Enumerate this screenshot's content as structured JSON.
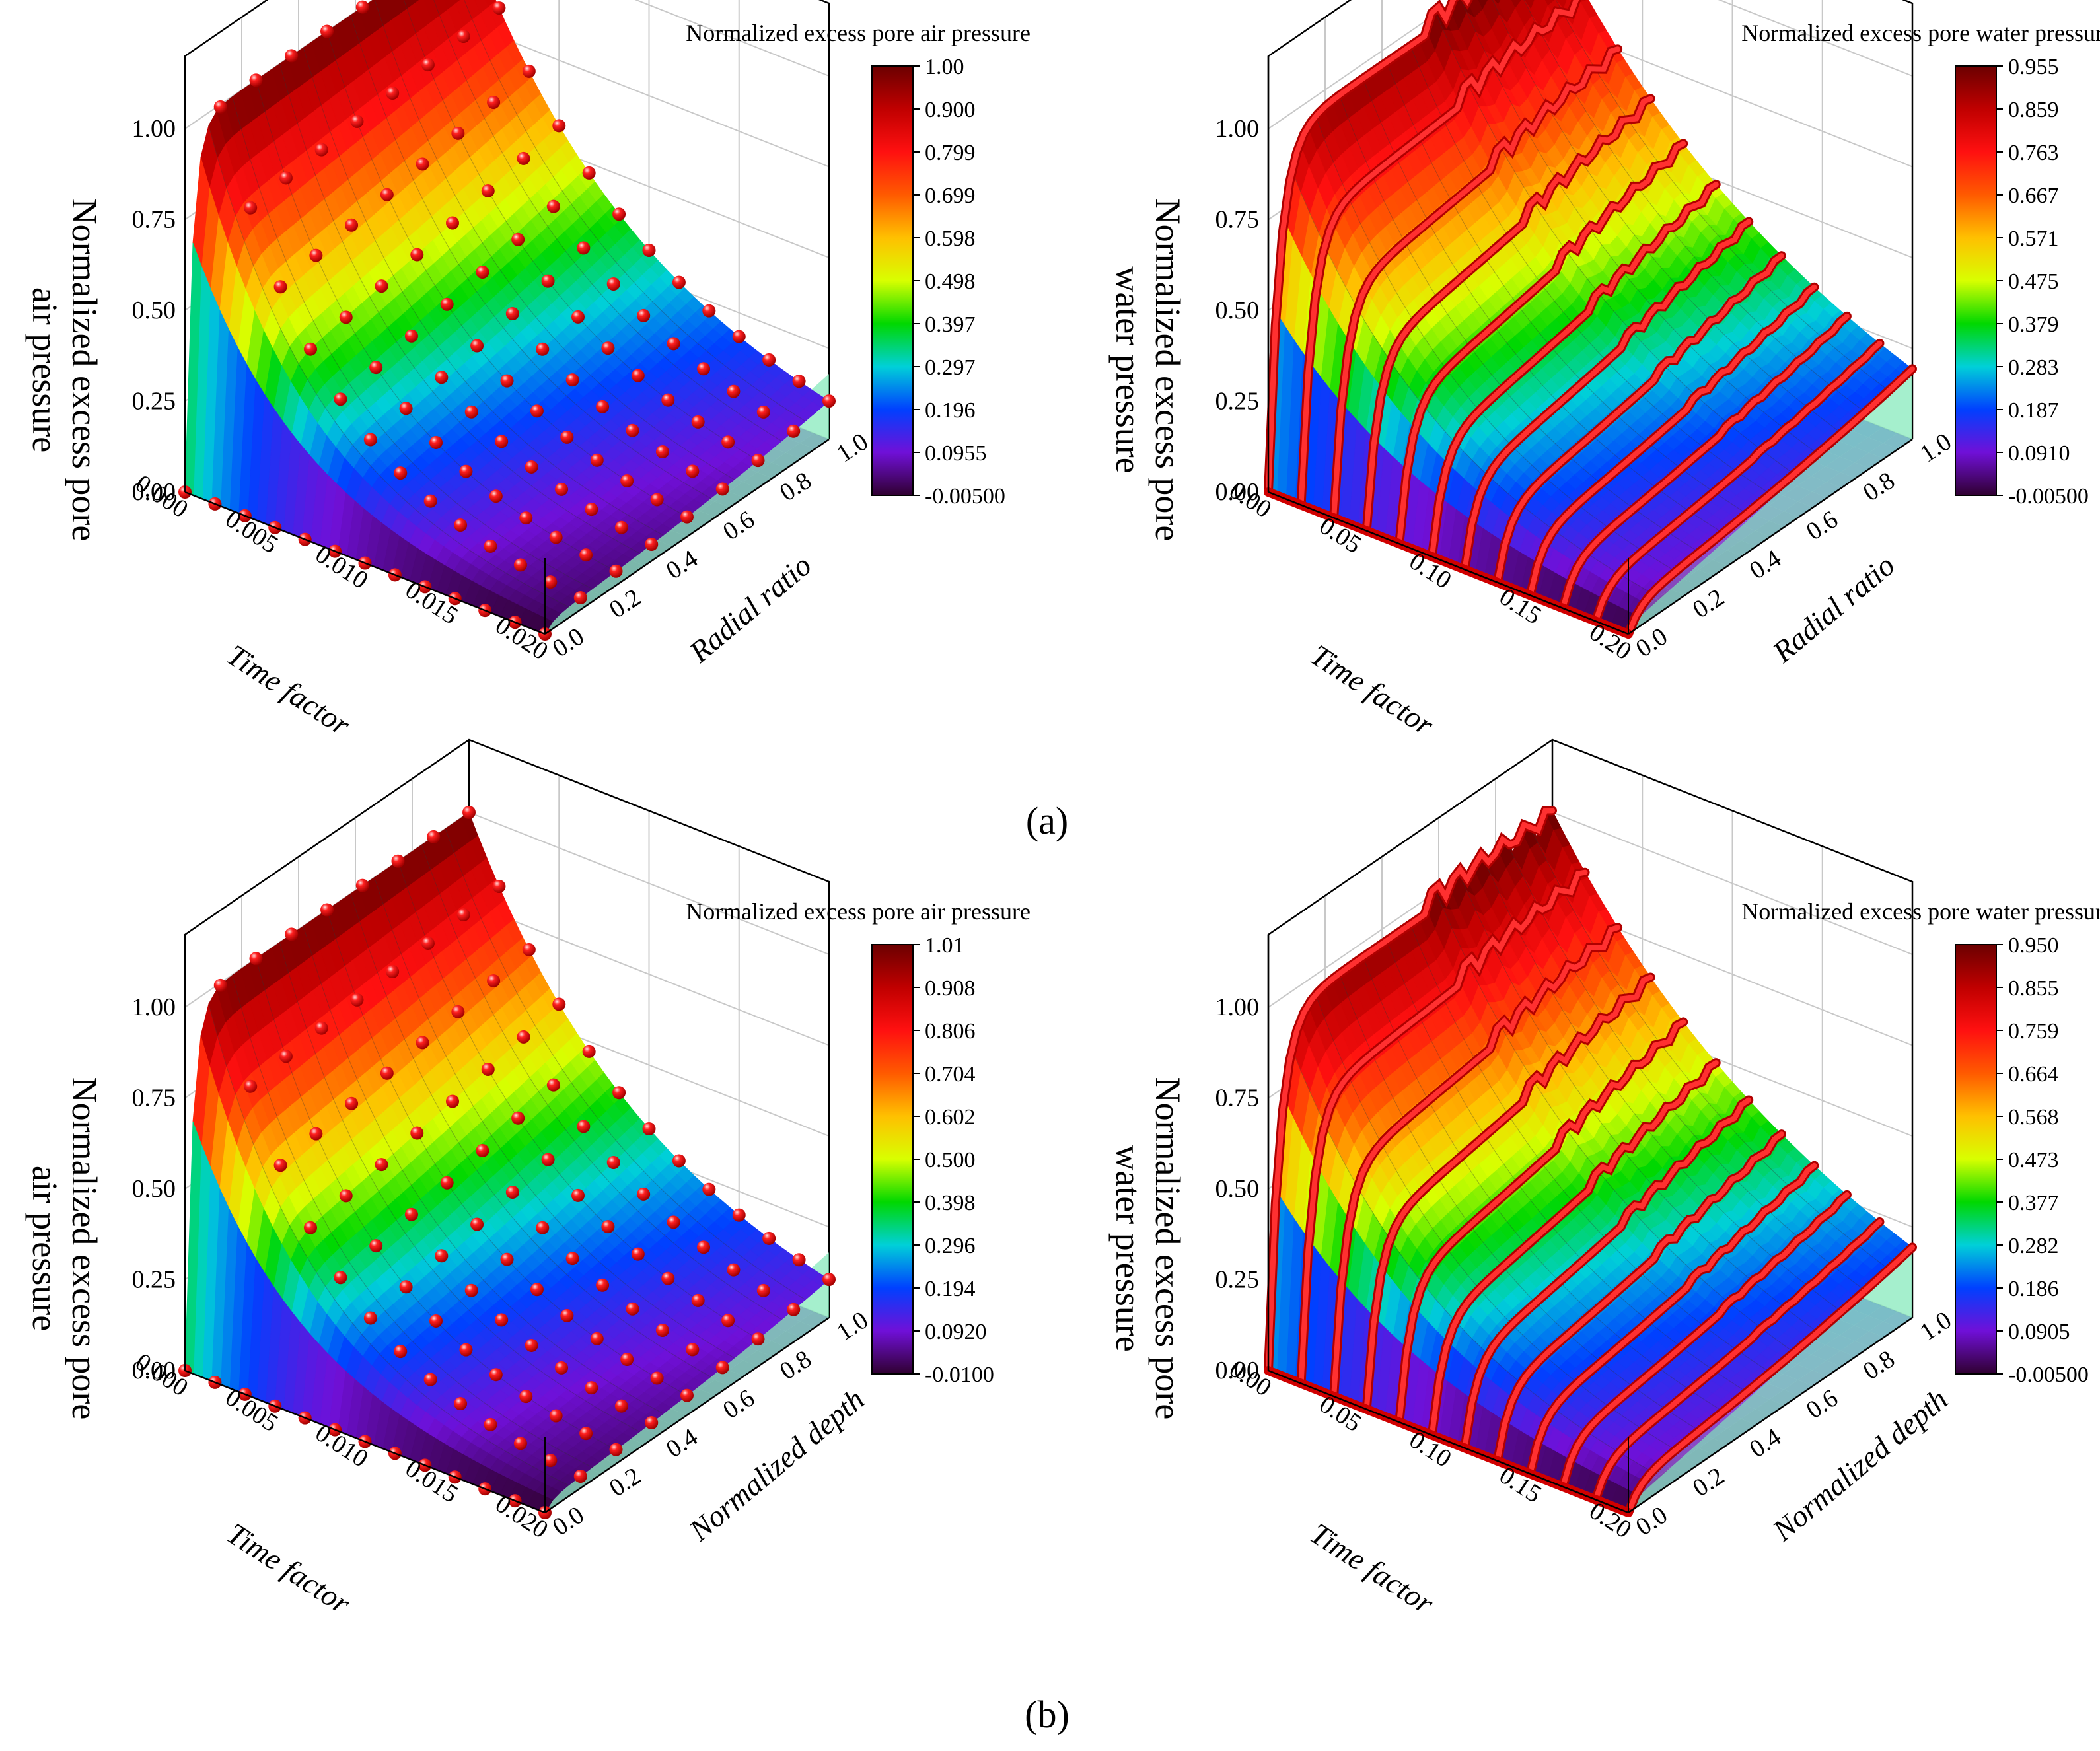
{
  "figure": {
    "caption_a": "(a)",
    "caption_b": "(b)"
  },
  "chart_data": [
    {
      "id": "a-air",
      "type": "3d-surface",
      "panel": "a",
      "title": "Normalized excess pore air pressure",
      "zlabel": [
        "Normalized excess pore",
        "air pressure"
      ],
      "xlabel": "Time factor",
      "ylabel": "Radial ratio",
      "x_ticks": [
        "0.000",
        "0.005",
        "0.010",
        "0.015",
        "0.020"
      ],
      "y_ticks": [
        "0.0",
        "0.2",
        "0.4",
        "0.6",
        "0.8",
        "1.0"
      ],
      "z_ticks": [
        "0.00",
        "0.25",
        "0.50",
        "0.75",
        "1.00"
      ],
      "colorbar": [
        "1.00",
        "0.900",
        "0.799",
        "0.699",
        "0.598",
        "0.498",
        "0.397",
        "0.297",
        "0.196",
        "0.0955",
        "-0.00500"
      ],
      "xlim": [
        0,
        0.02
      ],
      "ylim": [
        0,
        1
      ],
      "zlim": [
        0,
        1.2
      ],
      "surface_kind": "air",
      "marker_series": "spheres"
    },
    {
      "id": "a-water",
      "type": "3d-surface",
      "panel": "a",
      "title": "Normalized excess pore water pressure",
      "zlabel": [
        "Normalized excess pore",
        "water pressure"
      ],
      "xlabel": "Time factor",
      "ylabel": "Radial ratio",
      "x_ticks": [
        "0.00",
        "0.05",
        "0.10",
        "0.15",
        "0.20"
      ],
      "y_ticks": [
        "0.0",
        "0.2",
        "0.4",
        "0.6",
        "0.8",
        "1.0"
      ],
      "z_ticks": [
        "0.00",
        "0.25",
        "0.50",
        "0.75",
        "1.00"
      ],
      "colorbar": [
        "0.955",
        "0.859",
        "0.763",
        "0.667",
        "0.571",
        "0.475",
        "0.379",
        "0.283",
        "0.187",
        "0.0910",
        "-0.00500"
      ],
      "xlim": [
        0,
        0.2
      ],
      "ylim": [
        0,
        1
      ],
      "zlim": [
        0,
        1.2
      ],
      "surface_kind": "water",
      "marker_series": "tubes"
    },
    {
      "id": "b-air",
      "type": "3d-surface",
      "panel": "b",
      "title": "Normalized excess pore air pressure",
      "zlabel": [
        "Normalized excess pore",
        "air pressure"
      ],
      "xlabel": "Time factor",
      "ylabel": "Normalized depth",
      "x_ticks": [
        "0.000",
        "0.005",
        "0.010",
        "0.015",
        "0.020"
      ],
      "y_ticks": [
        "0.0",
        "0.2",
        "0.4",
        "0.6",
        "0.8",
        "1.0"
      ],
      "z_ticks": [
        "0.00",
        "0.25",
        "0.50",
        "0.75",
        "1.00"
      ],
      "colorbar": [
        "1.01",
        "0.908",
        "0.806",
        "0.704",
        "0.602",
        "0.500",
        "0.398",
        "0.296",
        "0.194",
        "0.0920",
        "-0.0100"
      ],
      "xlim": [
        0,
        0.02
      ],
      "ylim": [
        0,
        1
      ],
      "zlim": [
        0,
        1.2
      ],
      "surface_kind": "air",
      "marker_series": "spheres"
    },
    {
      "id": "b-water",
      "type": "3d-surface",
      "panel": "b",
      "title": "Normalized excess pore water pressure",
      "zlabel": [
        "Normalized excess pore",
        "water pressure"
      ],
      "xlabel": "Time factor",
      "ylabel": "Normalized depth",
      "x_ticks": [
        "0.00",
        "0.05",
        "0.10",
        "0.15",
        "0.20"
      ],
      "y_ticks": [
        "0.0",
        "0.2",
        "0.4",
        "0.6",
        "0.8",
        "1.0"
      ],
      "z_ticks": [
        "0.00",
        "0.25",
        "0.50",
        "0.75",
        "1.00"
      ],
      "colorbar": [
        "0.950",
        "0.855",
        "0.759",
        "0.664",
        "0.568",
        "0.473",
        "0.377",
        "0.282",
        "0.186",
        "0.0905",
        "-0.00500"
      ],
      "xlim": [
        0,
        0.2
      ],
      "ylim": [
        0,
        1
      ],
      "zlim": [
        0,
        1.2
      ],
      "surface_kind": "water",
      "marker_series": "tubes"
    }
  ],
  "colors": {
    "marker": "#e8141a",
    "marker_highlight": "#ffd0d0",
    "grid": "#c8c8c8",
    "axis": "#000000",
    "floor_left": "#9db8f0",
    "wall_right": "#7fe8b8"
  }
}
